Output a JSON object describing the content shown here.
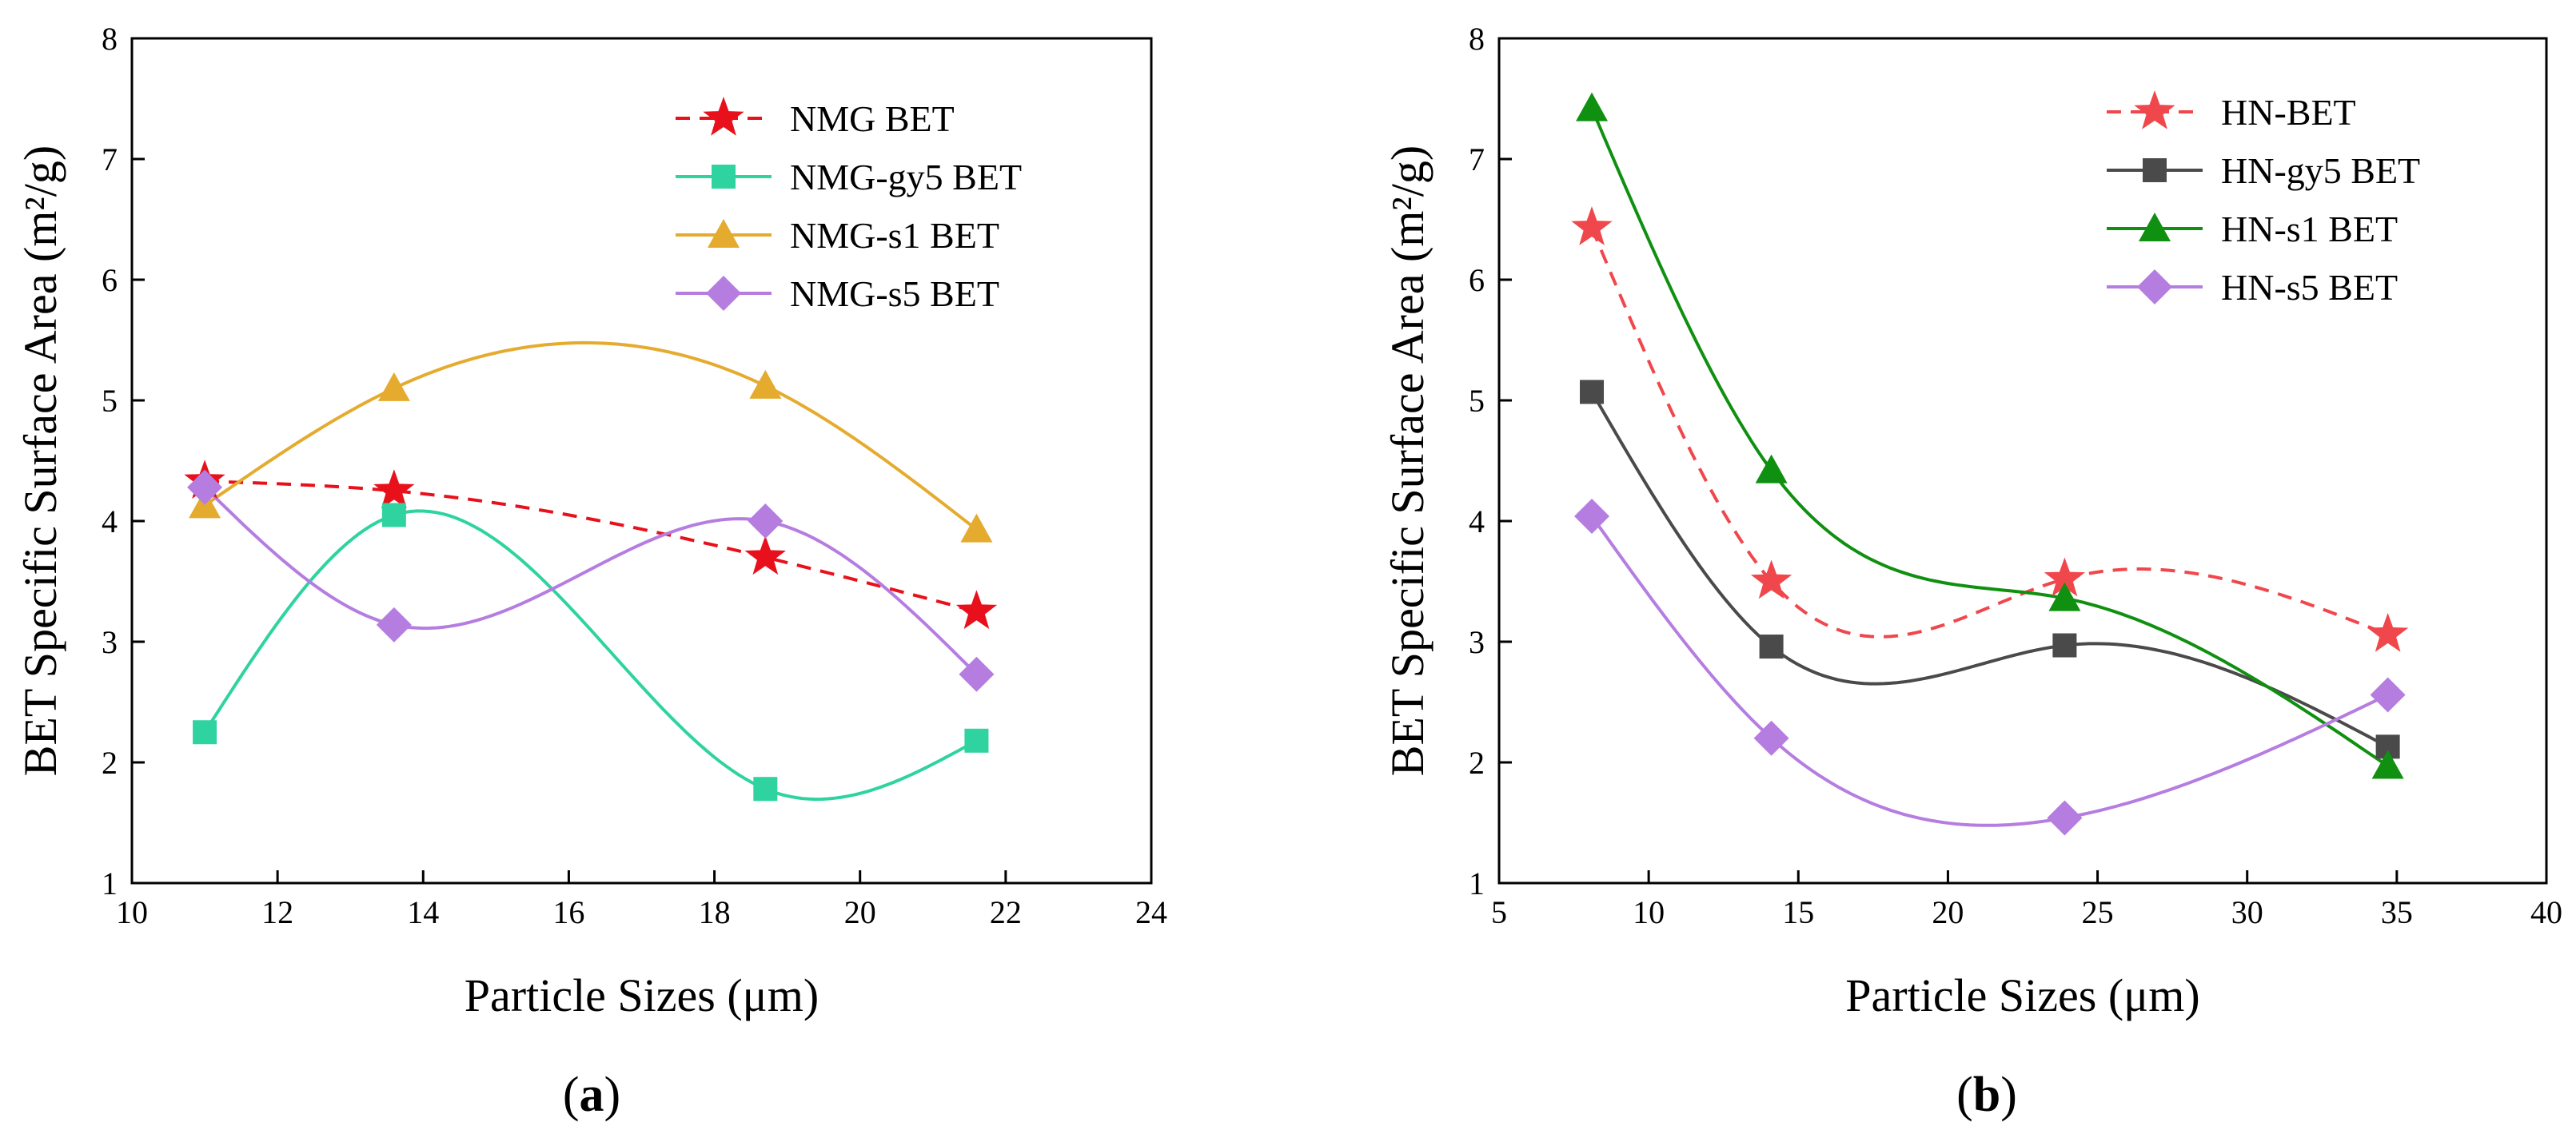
{
  "chart_data": [
    {
      "type": "scatter",
      "panel_label": "a",
      "xlabel": "Particle Sizes (μm)",
      "ylabel": "BET Specific Surface Area (m²/g)",
      "xlim": [
        10,
        24
      ],
      "ylim": [
        1,
        8
      ],
      "x_ticks": [
        10,
        12,
        14,
        16,
        18,
        20,
        22,
        24
      ],
      "y_ticks": [
        1,
        2,
        3,
        4,
        5,
        6,
        7,
        8
      ],
      "grid": false,
      "legend_position": "top-right",
      "series": [
        {
          "name": "NMG BET",
          "color": "#e8111b",
          "marker": "star",
          "line": "dashed",
          "x": [
            11.0,
            13.6,
            18.7,
            21.6
          ],
          "y": [
            4.33,
            4.25,
            3.7,
            3.25
          ]
        },
        {
          "name": "NMG-gy5 BET",
          "color": "#2ed3a0",
          "marker": "square",
          "line": "solid",
          "x": [
            11.0,
            13.6,
            18.7,
            21.6
          ],
          "y": [
            2.25,
            4.05,
            1.78,
            2.18
          ]
        },
        {
          "name": "NMG-s1 BET",
          "color": "#e5ab2e",
          "marker": "triangle",
          "line": "solid",
          "x": [
            11.0,
            13.6,
            18.7,
            21.6
          ],
          "y": [
            4.13,
            5.1,
            5.12,
            3.93
          ]
        },
        {
          "name": "NMG-s5 BET",
          "color": "#b57de0",
          "marker": "diamond",
          "line": "solid",
          "x": [
            11.0,
            13.6,
            18.7,
            21.6
          ],
          "y": [
            4.28,
            3.14,
            4.0,
            2.73
          ]
        }
      ]
    },
    {
      "type": "scatter",
      "panel_label": "b",
      "xlabel": "Particle Sizes (μm)",
      "ylabel": "BET Specific Surface Area (m²/g)",
      "xlim": [
        5,
        40
      ],
      "ylim": [
        1,
        8
      ],
      "x_ticks": [
        5,
        10,
        15,
        20,
        25,
        30,
        35,
        40
      ],
      "y_ticks": [
        1,
        2,
        3,
        4,
        5,
        6,
        7,
        8
      ],
      "grid": false,
      "legend_position": "top-right",
      "series": [
        {
          "name": "HN-BET",
          "color": "#f0474c",
          "marker": "star",
          "line": "dashed",
          "x": [
            8.1,
            14.1,
            23.9,
            34.7
          ],
          "y": [
            6.43,
            3.5,
            3.52,
            3.06
          ]
        },
        {
          "name": "HN-gy5 BET",
          "color": "#4a4a4a",
          "marker": "square",
          "line": "solid",
          "x": [
            8.1,
            14.1,
            23.9,
            34.7
          ],
          "y": [
            5.07,
            2.96,
            2.97,
            2.13
          ]
        },
        {
          "name": "HN-s1 BET",
          "color": "#109010",
          "marker": "triangle",
          "line": "solid",
          "x": [
            8.1,
            14.1,
            23.9,
            34.7
          ],
          "y": [
            7.42,
            4.42,
            3.36,
            1.97
          ]
        },
        {
          "name": "HN-s5 BET",
          "color": "#b57de0",
          "marker": "diamond",
          "line": "solid",
          "x": [
            8.1,
            14.1,
            23.9,
            34.7
          ],
          "y": [
            4.04,
            2.2,
            1.54,
            2.56
          ]
        }
      ]
    }
  ]
}
